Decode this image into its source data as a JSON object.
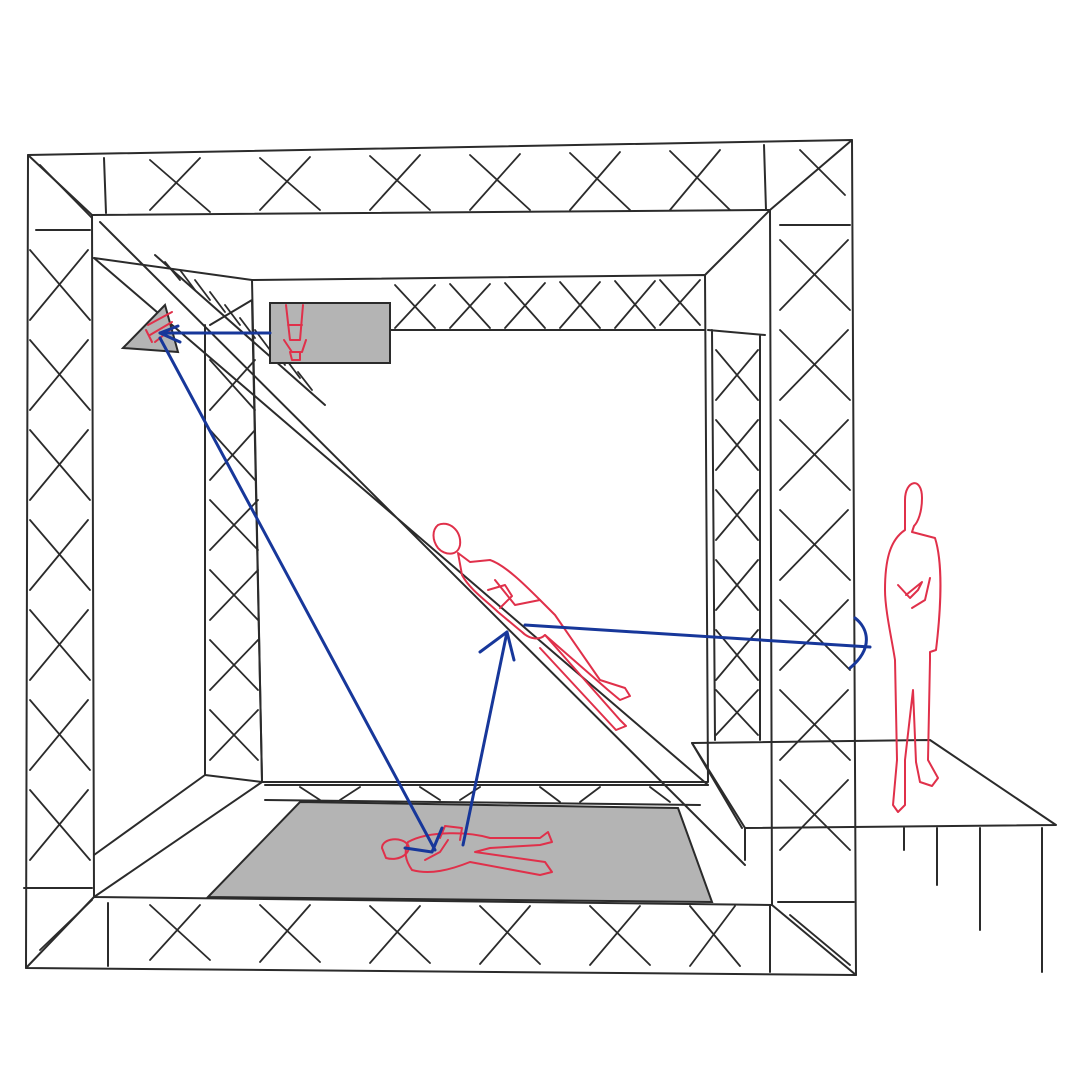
{
  "colors": {
    "ink": "#2b2b2b",
    "figure": "#e0304a",
    "light_ray": "#17379a",
    "screen_fill": "#b4b4b4",
    "background": "#ffffff"
  },
  "elements": {
    "outer_truss_frame": "truss-frame",
    "inner_truss_frame": "truss-frame",
    "diagonal_mirror": "mirror",
    "floor_screen": "projection-screen",
    "ceiling_screen": "projection-screen",
    "corner_reflector": "reflector",
    "audience_platform": "stage-platform",
    "figures": [
      "lying-figure",
      "mirror-figure",
      "upside-down-figure",
      "standing-viewer"
    ],
    "rays": [
      "floor-to-mirror",
      "floor-to-corner",
      "ceiling-to-corner",
      "mirror-to-viewer"
    ]
  }
}
